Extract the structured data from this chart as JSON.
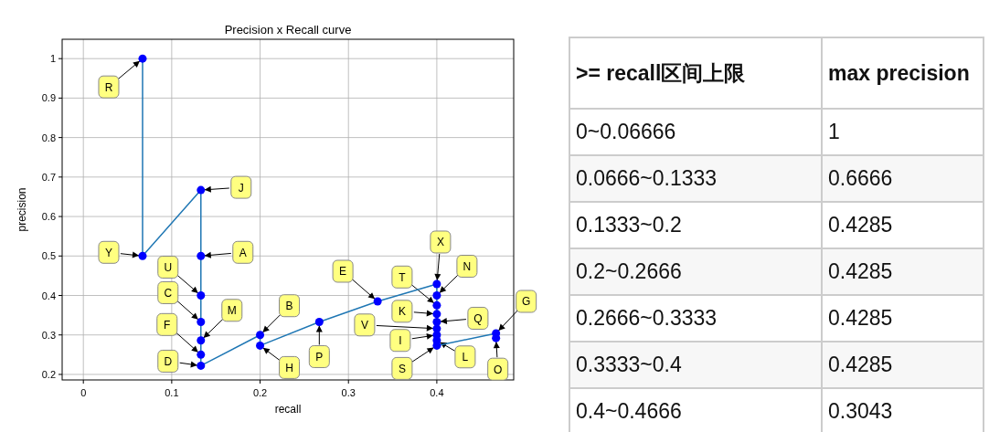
{
  "chart_data": [
    {
      "type": "line",
      "title": "Precision x Recall curve",
      "xlabel": "recall",
      "ylabel": "precision",
      "xlim": [
        -0.024,
        0.487
      ],
      "ylim": [
        0.186,
        1.049
      ],
      "xticks": [
        0.0,
        0.1,
        0.2,
        0.3,
        0.4
      ],
      "yticks": [
        0.2,
        0.3,
        0.4,
        0.5,
        0.6,
        0.7,
        0.8,
        0.9,
        1.0
      ],
      "grid": true,
      "series": [
        {
          "type": "line",
          "color": "#1f77b4",
          "marker": "none",
          "x": [
            0.067,
            0.067,
            0.133,
            0.133,
            0.133,
            0.133,
            0.133,
            0.133,
            0.133,
            0.2,
            0.2,
            0.267,
            0.333,
            0.4,
            0.4,
            0.4,
            0.4,
            0.4,
            0.4,
            0.4,
            0.4,
            0.4,
            0.467,
            0.467
          ],
          "values": [
            1.0,
            0.5,
            0.667,
            0.5,
            0.4,
            0.333,
            0.286,
            0.25,
            0.222,
            0.3,
            0.273,
            0.333,
            0.385,
            0.429,
            0.4,
            0.375,
            0.353,
            0.333,
            0.316,
            0.3,
            0.286,
            0.273,
            0.304,
            0.292
          ]
        },
        {
          "type": "scatter",
          "color": "#0000ff",
          "marker": "circle",
          "x": [
            0.067,
            0.067,
            0.133,
            0.133,
            0.133,
            0.133,
            0.133,
            0.133,
            0.133,
            0.2,
            0.2,
            0.267,
            0.333,
            0.4,
            0.4,
            0.4,
            0.4,
            0.4,
            0.4,
            0.4,
            0.4,
            0.4,
            0.467,
            0.467
          ],
          "values": [
            1.0,
            0.5,
            0.667,
            0.5,
            0.4,
            0.333,
            0.286,
            0.25,
            0.222,
            0.3,
            0.273,
            0.333,
            0.385,
            0.429,
            0.4,
            0.375,
            0.353,
            0.333,
            0.316,
            0.3,
            0.286,
            0.273,
            0.304,
            0.292
          ]
        }
      ],
      "annotations": [
        {
          "text": "R",
          "x": 0.067,
          "y": 1.0
        },
        {
          "text": "Y",
          "x": 0.067,
          "y": 0.5
        },
        {
          "text": "J",
          "x": 0.133,
          "y": 0.667
        },
        {
          "text": "A",
          "x": 0.133,
          "y": 0.5
        },
        {
          "text": "U",
          "x": 0.133,
          "y": 0.4
        },
        {
          "text": "C",
          "x": 0.133,
          "y": 0.333
        },
        {
          "text": "M",
          "x": 0.133,
          "y": 0.286
        },
        {
          "text": "F",
          "x": 0.133,
          "y": 0.25
        },
        {
          "text": "D",
          "x": 0.133,
          "y": 0.222
        },
        {
          "text": "B",
          "x": 0.2,
          "y": 0.3
        },
        {
          "text": "H",
          "x": 0.2,
          "y": 0.273
        },
        {
          "text": "P",
          "x": 0.267,
          "y": 0.333
        },
        {
          "text": "E",
          "x": 0.333,
          "y": 0.385
        },
        {
          "text": "X",
          "x": 0.4,
          "y": 0.429
        },
        {
          "text": "N",
          "x": 0.4,
          "y": 0.4
        },
        {
          "text": "T",
          "x": 0.4,
          "y": 0.375
        },
        {
          "text": "K",
          "x": 0.4,
          "y": 0.353
        },
        {
          "text": "Q",
          "x": 0.4,
          "y": 0.333
        },
        {
          "text": "V",
          "x": 0.4,
          "y": 0.316
        },
        {
          "text": "I",
          "x": 0.4,
          "y": 0.3
        },
        {
          "text": "L",
          "x": 0.4,
          "y": 0.286
        },
        {
          "text": "S",
          "x": 0.4,
          "y": 0.273
        },
        {
          "text": "G",
          "x": 0.467,
          "y": 0.304
        },
        {
          "text": "O",
          "x": 0.467,
          "y": 0.292
        }
      ]
    },
    {
      "type": "other",
      "annotations": [
        ">= recall区间上限",
        "max precision",
        "0~0.06666",
        "1",
        "0.0666~0.1333",
        "0.6666",
        "0.1333~0.2",
        "0.4285",
        "0.2~0.2666",
        "0.4285",
        "0.2666~0.3333",
        "0.4285",
        "0.3333~0.4",
        "0.4285",
        "0.4~0.4666",
        "0.3043"
      ]
    }
  ]
}
